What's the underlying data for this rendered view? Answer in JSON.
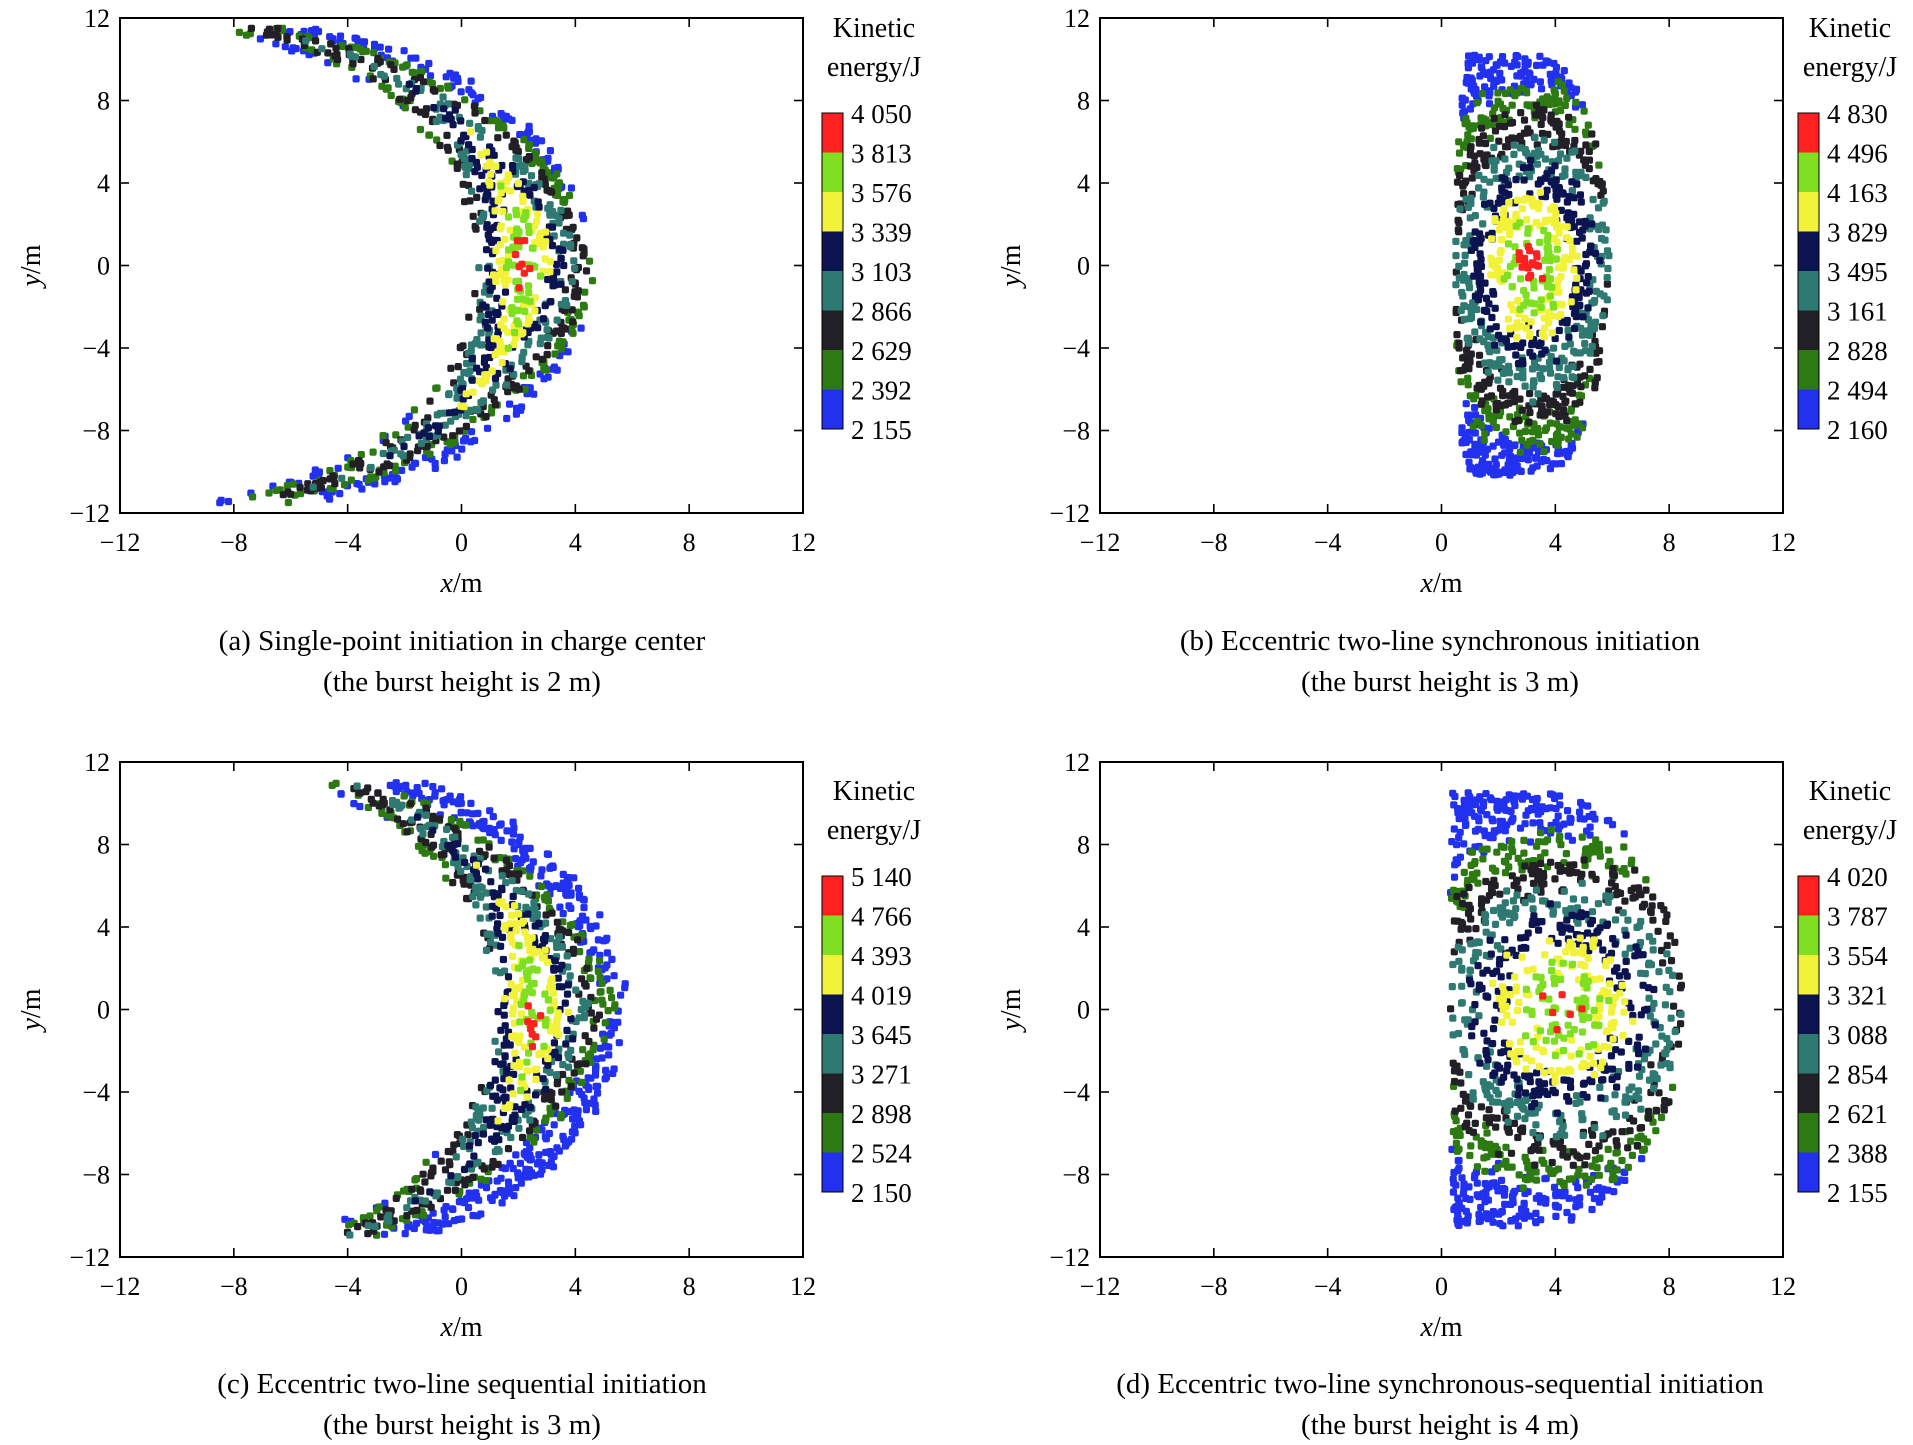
{
  "chart_data": [
    {
      "type": "scatter",
      "panel": "a",
      "caption_line1": "(a) Single-point initiation in charge center",
      "caption_line2": "(the burst height is 2 m)",
      "xlabel_var": "x",
      "xlabel_unit": "/m",
      "ylabel_var": "y",
      "ylabel_unit": "/m",
      "xlim": [
        -12,
        12
      ],
      "ylim": [
        -12,
        12
      ],
      "xticks": [
        "−12",
        "−8",
        "−4",
        "0",
        "4",
        "8",
        "12"
      ],
      "yticks": [
        "12",
        "8",
        "4",
        "0",
        "−4",
        "−8",
        "−12"
      ],
      "colorbar_title_line1": "Kinetic",
      "colorbar_title_line2": "energy/J",
      "colorbar_levels": [
        "4 050",
        "3 813",
        "3 576",
        "3 339",
        "3 103",
        "2 866",
        "2 629",
        "2 392",
        "2 155"
      ],
      "colorbar_colors": [
        "#ff2020",
        "#7ee020",
        "#f2f23a",
        "#0b1450",
        "#2e7a72",
        "#222026",
        "#2d7a12",
        "#2230f0"
      ],
      "distribution": {
        "shape": "arc",
        "center_x": 2.0,
        "arc_radius": 11.5,
        "inner_offset": -1.2,
        "outer_offset": 2.4,
        "y_extent": 11.5,
        "seed": 11,
        "count": 1100
      }
    },
    {
      "type": "scatter",
      "panel": "b",
      "caption_line1": "(b) Eccentric two-line synchronous initiation",
      "caption_line2": "(the burst height is 3 m)",
      "xlabel_var": "x",
      "xlabel_unit": "/m",
      "ylabel_var": "y",
      "ylabel_unit": "/m",
      "xlim": [
        -12,
        12
      ],
      "ylim": [
        -12,
        12
      ],
      "xticks": [
        "−12",
        "−8",
        "−4",
        "0",
        "4",
        "8",
        "12"
      ],
      "yticks": [
        "12",
        "8",
        "4",
        "0",
        "−4",
        "−8",
        "−12"
      ],
      "colorbar_title_line1": "Kinetic",
      "colorbar_title_line2": "energy/J",
      "colorbar_levels": [
        "4 830",
        "4 496",
        "4 163",
        "3 829",
        "3 495",
        "3 161",
        "2 828",
        "2 494",
        "2 160"
      ],
      "colorbar_colors": [
        "#ff2020",
        "#7ee020",
        "#f2f23a",
        "#0b1450",
        "#2e7a72",
        "#222026",
        "#2d7a12",
        "#2230f0"
      ],
      "distribution": {
        "shape": "blob",
        "center_x": 3.2,
        "half_width_x": 2.7,
        "y_extent": 10.2,
        "seed": 23,
        "count": 1300
      }
    },
    {
      "type": "scatter",
      "panel": "c",
      "caption_line1": "(c) Eccentric two-line sequential initiation",
      "caption_line2": "(the burst height is 3 m)",
      "xlabel_var": "x",
      "xlabel_unit": "/m",
      "ylabel_var": "y",
      "ylabel_unit": "/m",
      "xlim": [
        -12,
        12
      ],
      "ylim": [
        -12,
        12
      ],
      "xticks": [
        "−12",
        "−8",
        "−4",
        "0",
        "4",
        "8",
        "12"
      ],
      "yticks": [
        "12",
        "8",
        "4",
        "0",
        "−4",
        "−8",
        "−12"
      ],
      "colorbar_title_line1": "Kinetic",
      "colorbar_title_line2": "energy/J",
      "colorbar_levels": [
        "5 140",
        "4 766",
        "4 393",
        "4 019",
        "3 645",
        "3 271",
        "2 898",
        "2 524",
        "2 150"
      ],
      "colorbar_colors": [
        "#ff2020",
        "#7ee020",
        "#f2f23a",
        "#0b1450",
        "#2e7a72",
        "#222026",
        "#2d7a12",
        "#2230f0"
      ],
      "distribution": {
        "shape": "arc",
        "center_x": 2.4,
        "arc_radius": 12.5,
        "inner_offset": -1.0,
        "outer_offset": 3.2,
        "y_extent": 11.0,
        "seed": 37,
        "count": 1200
      }
    },
    {
      "type": "scatter",
      "panel": "d",
      "caption_line1": "(d) Eccentric two-line synchronous-sequential initiation",
      "caption_line2": "(the burst height is 4 m)",
      "xlabel_var": "x",
      "xlabel_unit": "/m",
      "ylabel_var": "y",
      "ylabel_unit": "/m",
      "xlim": [
        -12,
        12
      ],
      "ylim": [
        -12,
        12
      ],
      "xticks": [
        "−12",
        "−8",
        "−4",
        "0",
        "4",
        "8",
        "12"
      ],
      "yticks": [
        "12",
        "8",
        "4",
        "0",
        "−4",
        "−8",
        "−12"
      ],
      "colorbar_title_line1": "Kinetic",
      "colorbar_title_line2": "energy/J",
      "colorbar_levels": [
        "4 020",
        "3 787",
        "3 554",
        "3 321",
        "3 088",
        "2 854",
        "2 621",
        "2 388",
        "2 155"
      ],
      "colorbar_colors": [
        "#ff2020",
        "#7ee020",
        "#f2f23a",
        "#0b1450",
        "#2e7a72",
        "#222026",
        "#2d7a12",
        "#2230f0"
      ],
      "distribution": {
        "shape": "halfdisk",
        "center_x": 3.5,
        "radius_x": 5.0,
        "y_extent": 10.5,
        "seed": 53,
        "count": 1400
      }
    }
  ]
}
